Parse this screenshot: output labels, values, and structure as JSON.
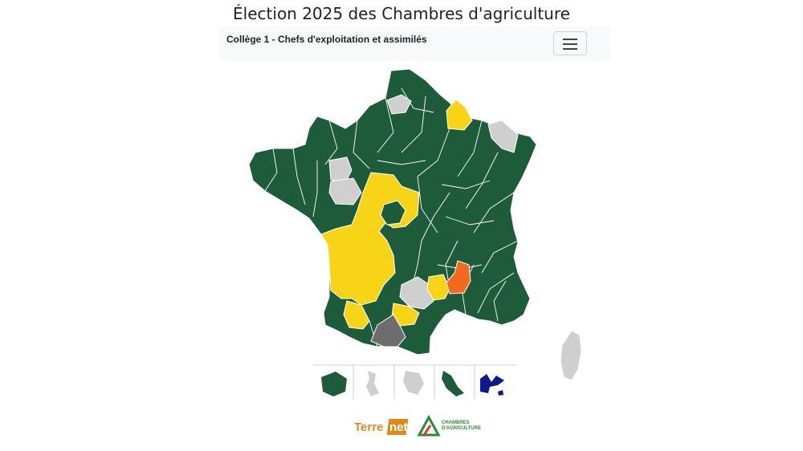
{
  "page": {
    "title": "Élection 2025 des Chambres d'agriculture"
  },
  "navbar": {
    "label": "Collège 1 - Chefs d'exploitation et assimilés",
    "menu_icon": "hamburger-icon"
  },
  "colors": {
    "green": "#1e5b3a",
    "yellow": "#f7d417",
    "light_gray": "#cfcfcf",
    "dark_gray": "#6d6d6d",
    "orange": "#f26b1d",
    "navy": "#0b1a8c",
    "border": "#ffffff"
  },
  "map": {
    "regions": [
      {
        "name": "Nord",
        "color": "green"
      },
      {
        "name": "Somme",
        "color": "light_gray"
      },
      {
        "name": "Ardennes",
        "color": "yellow"
      },
      {
        "name": "Moselle",
        "color": "light_gray"
      },
      {
        "name": "Mayenne",
        "color": "light_gray"
      },
      {
        "name": "Maine-et-Loire",
        "color": "light_gray"
      },
      {
        "name": "Centre-Ouest",
        "color": "yellow"
      },
      {
        "name": "Aveyron",
        "color": "light_gray"
      },
      {
        "name": "Lozère",
        "color": "yellow"
      },
      {
        "name": "Ardèche",
        "color": "orange"
      },
      {
        "name": "Tarn",
        "color": "yellow"
      },
      {
        "name": "Ariège",
        "color": "dark_gray"
      },
      {
        "name": "Corse",
        "color": "light_gray"
      }
    ],
    "overseas": [
      {
        "name": "La Réunion",
        "color": "green"
      },
      {
        "name": "Mayotte",
        "color": "light_gray"
      },
      {
        "name": "Guyane",
        "color": "light_gray"
      },
      {
        "name": "Martinique",
        "color": "green"
      },
      {
        "name": "Guadeloupe",
        "color": "navy"
      }
    ]
  },
  "logos": {
    "terre_a": "Terre",
    "terre_b": "net",
    "chambres_1": "CHAMBRES",
    "chambres_2": "D'AGRICULTURE"
  }
}
